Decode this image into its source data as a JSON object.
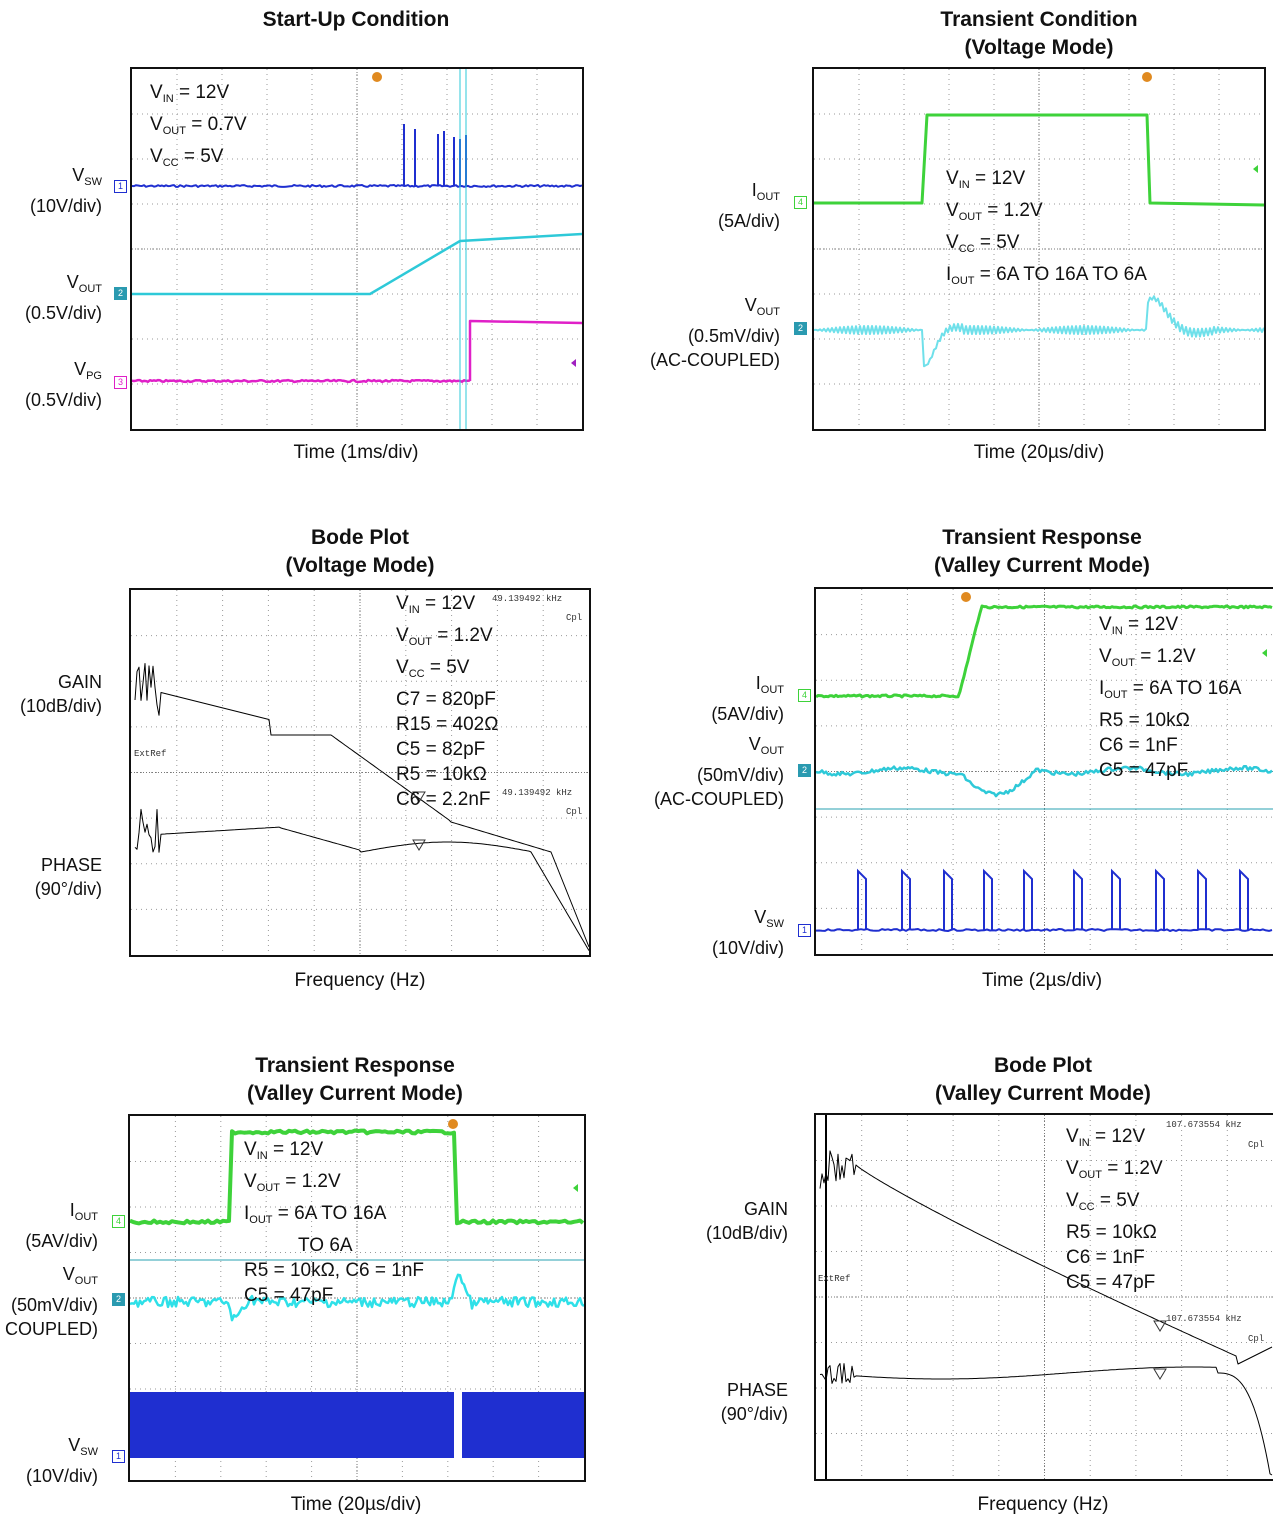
{
  "panels": [
    {
      "title": [
        "Start-Up Condition"
      ],
      "xlabel": "Time (1ms/div)",
      "channels": [
        {
          "name": "V_SW",
          "base": "V",
          "sub": "SW",
          "scale": "(10V/div)",
          "marker": "1",
          "color": "#1f2fd0"
        },
        {
          "name": "V_OUT",
          "base": "V",
          "sub": "OUT",
          "scale": "(0.5V/div)",
          "marker": "2",
          "color": "#2ec9d8"
        },
        {
          "name": "V_PG",
          "base": "V",
          "sub": "PG",
          "scale": "(0.5V/div)",
          "marker": "3",
          "color": "#e020c8"
        }
      ],
      "annotations": [
        {
          "base": "V",
          "sub": "IN",
          "rest": " = 12V"
        },
        {
          "base": "V",
          "sub": "OUT",
          "rest": " = 0.7V"
        },
        {
          "base": "V",
          "sub": "CC",
          "rest": " = 5V"
        }
      ]
    },
    {
      "title": [
        "Transient Condition",
        "(Voltage Mode)"
      ],
      "xlabel": "Time (20µs/div)",
      "channels": [
        {
          "name": "I_OUT",
          "base": "I",
          "sub": "OUT",
          "scale": "(5A/div)",
          "marker": "4",
          "color": "#3ed23a"
        },
        {
          "name": "V_OUT",
          "base": "V",
          "sub": "OUT",
          "scale": "(0.5mV/div)",
          "extra": "(AC-COUPLED)",
          "marker": "2",
          "color": "#6fe0ea"
        }
      ],
      "annotations": [
        {
          "base": "V",
          "sub": "IN",
          "rest": " = 12V"
        },
        {
          "base": "V",
          "sub": "OUT",
          "rest": " = 1.2V"
        },
        {
          "base": "V",
          "sub": "CC",
          "rest": " = 5V"
        },
        {
          "base": "I",
          "sub": "OUT",
          "rest": " = 6A TO 16A TO 6A"
        }
      ]
    },
    {
      "title": [
        "Bode Plot",
        "(Voltage Mode)"
      ],
      "xlabel": "Frequency (Hz)",
      "channels": [
        {
          "name": "GAIN",
          "label": "GAIN",
          "scale": "(10dB/div)"
        },
        {
          "name": "PHASE",
          "label": "PHASE",
          "scale": "(90°/div)"
        }
      ],
      "annotations": [
        {
          "base": "V",
          "sub": "IN",
          "rest": " = 12V"
        },
        {
          "base": "V",
          "sub": "OUT",
          "rest": " = 1.2V"
        },
        {
          "base": "V",
          "sub": "CC",
          "rest": " = 5V"
        },
        {
          "base": "C7 = 820pF"
        },
        {
          "base": "R15 = 402Ω"
        },
        {
          "base": "C5 = 82pF"
        },
        {
          "base": "R5 = 10kΩ"
        },
        {
          "base": "C6 = 2.2nF"
        }
      ],
      "readouts": [
        "49.139492 kHz",
        "Cpl",
        "ExtRef",
        "49.139492 kHz",
        "Cpl"
      ]
    },
    {
      "title": [
        "Transient Response",
        "(Valley Current Mode)"
      ],
      "xlabel": "Time (2µs/div)",
      "channels": [
        {
          "name": "I_OUT",
          "base": "I",
          "sub": "OUT",
          "scale": "(5AV/div)",
          "marker": "4",
          "color": "#3ed23a"
        },
        {
          "name": "V_OUT",
          "base": "V",
          "sub": "OUT",
          "scale": "(50mV/div)",
          "extra": "(AC-COUPLED)",
          "marker": "2",
          "color": "#2ec9d8"
        },
        {
          "name": "V_SW",
          "base": "V",
          "sub": "SW",
          "scale": "(10V/div)",
          "marker": "1",
          "color": "#1f2fd0"
        }
      ],
      "annotations": [
        {
          "base": "V",
          "sub": "IN",
          "rest": " = 12V"
        },
        {
          "base": "V",
          "sub": "OUT",
          "rest": " = 1.2V"
        },
        {
          "base": "I",
          "sub": "OUT",
          "rest": " = 6A TO 16A"
        },
        {
          "base": "R5 = 10kΩ"
        },
        {
          "base": "C6 = 1nF"
        },
        {
          "base": "C5 = 47pF"
        }
      ]
    },
    {
      "title": [
        "Transient Response",
        "(Valley Current Mode)"
      ],
      "xlabel": "Time (20µs/div)",
      "channels": [
        {
          "name": "I_OUT",
          "base": "I",
          "sub": "OUT",
          "scale": "(5AV/div)",
          "marker": "4",
          "color": "#3ed23a"
        },
        {
          "name": "V_OUT",
          "base": "V",
          "sub": "OUT",
          "scale": "(50mV/div)",
          "extra": "COUPLED)",
          "marker": "2",
          "color": "#2ee0e8"
        },
        {
          "name": "V_SW",
          "base": "V",
          "sub": "SW",
          "scale": "(10V/div)",
          "marker": "1",
          "color": "#1f2fd0"
        }
      ],
      "annotations": [
        {
          "base": "V",
          "sub": "IN",
          "rest": " = 12V"
        },
        {
          "base": "V",
          "sub": "OUT",
          "rest": " = 1.2V"
        },
        {
          "base": "I",
          "sub": "OUT",
          "rest": " = 6A TO 16A"
        },
        {
          "base": "TO 6A"
        },
        {
          "base": "R5 = 10kΩ, C6 = 1nF"
        },
        {
          "base": "C5 = 47pF"
        }
      ]
    },
    {
      "title": [
        "Bode Plot",
        "(Valley Current Mode)"
      ],
      "xlabel": "Frequency (Hz)",
      "channels": [
        {
          "name": "GAIN",
          "label": "GAIN",
          "scale": "(10dB/div)"
        },
        {
          "name": "PHASE",
          "label": "PHASE",
          "scale": "(90°/div)"
        }
      ],
      "annotations": [
        {
          "base": "V",
          "sub": "IN",
          "rest": " = 12V"
        },
        {
          "base": "V",
          "sub": "OUT",
          "rest": " = 1.2V"
        },
        {
          "base": "V",
          "sub": "CC",
          "rest": " = 5V"
        },
        {
          "base": "R5 = 10kΩ"
        },
        {
          "base": "C6 = 1nF"
        },
        {
          "base": "C5 = 47pF"
        }
      ],
      "readouts": [
        "107.673554 kHz",
        "Cpl",
        "ExtRef",
        "107.673554 kHz",
        "Cpl"
      ]
    }
  ],
  "chart_data": [
    {
      "type": "line",
      "title": "Start-Up Condition",
      "xlabel": "Time (1ms/div)",
      "divisions": [
        10,
        8
      ],
      "series": [
        {
          "name": "V_SW"
        },
        {
          "name": "V_OUT"
        },
        {
          "name": "V_PG"
        }
      ],
      "parameters": {
        "V_IN": "12V",
        "V_OUT": "0.7V",
        "V_CC": "5V"
      }
    },
    {
      "type": "line",
      "title": "Transient Condition (Voltage Mode)",
      "xlabel": "Time (20µs/div)",
      "divisions": [
        10,
        8
      ],
      "series": [
        {
          "name": "I_OUT",
          "low_A": 6,
          "high_A": 16
        },
        {
          "name": "V_OUT"
        }
      ],
      "parameters": {
        "V_IN": "12V",
        "V_OUT": "1.2V",
        "V_CC": "5V",
        "I_OUT": "6A TO 16A TO 6A"
      }
    },
    {
      "type": "line",
      "title": "Bode Plot (Voltage Mode)",
      "xlabel": "Frequency (Hz)",
      "crossover_kHz": 49.139492,
      "series": [
        {
          "name": "GAIN"
        },
        {
          "name": "PHASE"
        }
      ],
      "parameters": {
        "V_IN": "12V",
        "V_OUT": "1.2V",
        "V_CC": "5V",
        "C7": "820pF",
        "R15": "402Ω",
        "C5": "82pF",
        "R5": "10kΩ",
        "C6": "2.2nF"
      }
    },
    {
      "type": "line",
      "title": "Transient Response (Valley Current Mode)",
      "xlabel": "Time (2µs/div)",
      "divisions": [
        10,
        8
      ],
      "series": [
        {
          "name": "I_OUT",
          "low_A": 6,
          "high_A": 16
        },
        {
          "name": "V_OUT"
        },
        {
          "name": "V_SW"
        }
      ],
      "parameters": {
        "V_IN": "12V",
        "V_OUT": "1.2V",
        "I_OUT": "6A TO 16A",
        "R5": "10kΩ",
        "C6": "1nF",
        "C5": "47pF"
      }
    },
    {
      "type": "line",
      "title": "Transient Response (Valley Current Mode)",
      "xlabel": "Time (20µs/div)",
      "divisions": [
        10,
        8
      ],
      "series": [
        {
          "name": "I_OUT",
          "low_A": 6,
          "high_A": 16
        },
        {
          "name": "V_OUT"
        },
        {
          "name": "V_SW"
        }
      ],
      "parameters": {
        "V_IN": "12V",
        "V_OUT": "1.2V",
        "I_OUT": "6A TO 16A TO 6A",
        "R5": "10kΩ",
        "C6": "1nF",
        "C5": "47pF"
      }
    },
    {
      "type": "line",
      "title": "Bode Plot (Valley Current Mode)",
      "xlabel": "Frequency (Hz)",
      "crossover_kHz": 107.673554,
      "series": [
        {
          "name": "GAIN"
        },
        {
          "name": "PHASE"
        }
      ],
      "parameters": {
        "V_IN": "12V",
        "V_OUT": "1.2V",
        "V_CC": "5V",
        "R5": "10kΩ",
        "C6": "1nF",
        "C5": "47pF"
      }
    }
  ]
}
